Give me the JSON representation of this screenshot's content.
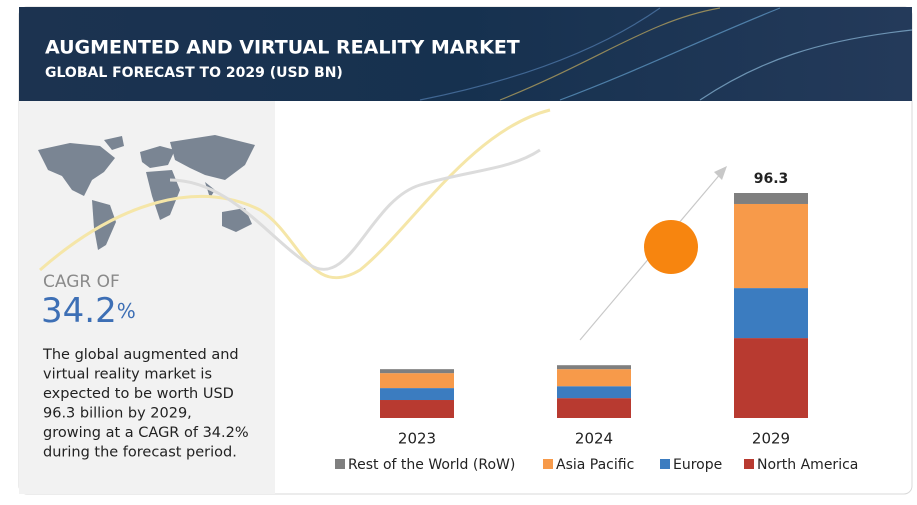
{
  "header": {
    "title": "AUGMENTED AND VIRTUAL REALITY MARKET",
    "subtitle": "GLOBAL FORECAST TO 2029 (USD BN)"
  },
  "side_panel": {
    "cagr_label": "CAGR OF",
    "cagr_value": "34.2",
    "cagr_unit": "%",
    "description_lines": [
      "The global augmented and",
      "virtual reality market is",
      "expected to be worth USD",
      "96.3 billion by 2029,",
      "growing at a CAGR of 34.2%",
      "during the forecast period."
    ]
  },
  "chart_data": {
    "type": "stacked-bar",
    "categories": [
      "2023",
      "2024",
      "2029"
    ],
    "series": [
      {
        "name": "Rest of the World (RoW)",
        "color": "#7f7f7f",
        "values": [
          1.7,
          1.7,
          4.7
        ]
      },
      {
        "name": "Asia Pacific",
        "color": "#f79a4a",
        "values": [
          6.4,
          7.3,
          36.0
        ]
      },
      {
        "name": "Europe",
        "color": "#3b7cc0",
        "values": [
          5.1,
          5.1,
          21.4
        ]
      },
      {
        "name": "North America",
        "color": "#b83a30",
        "values": [
          7.7,
          8.5,
          34.2
        ]
      }
    ],
    "totals": [
      null,
      null,
      96.3
    ],
    "legend": "bottom"
  }
}
